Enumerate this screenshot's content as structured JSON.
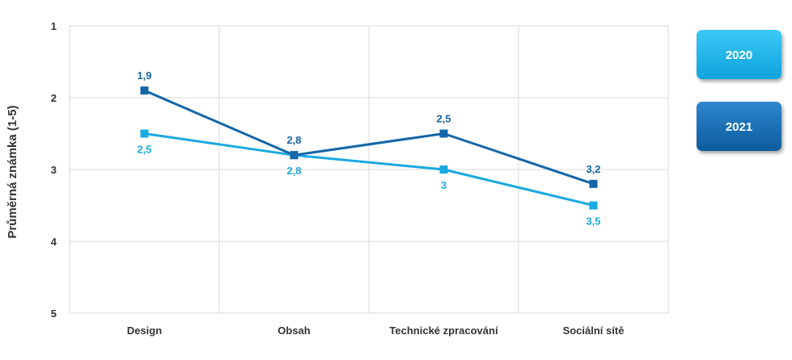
{
  "chart_data": {
    "type": "line",
    "title": "",
    "xlabel": "",
    "ylabel": "Průměrná známka (1-5)",
    "categories": [
      "Design",
      "Obsah",
      "Technické zpracování",
      "Sociální sítě"
    ],
    "yticks": [
      "1",
      "2",
      "3",
      "4",
      "5"
    ],
    "ylim": [
      1,
      5
    ],
    "y_inverted": true,
    "grid": true,
    "legend_position": "right",
    "series": [
      {
        "name": "2020",
        "values": [
          2.5,
          2.8,
          3,
          3.5
        ],
        "labels": [
          "2,5",
          "2,8",
          "3",
          "3,5"
        ],
        "label_side": "below",
        "color": "#1BA9E1"
      },
      {
        "name": "2021",
        "values": [
          1.9,
          2.8,
          2.5,
          3.2
        ],
        "labels": [
          "1,9",
          "2,8",
          "2,5",
          "3,2"
        ],
        "label_side": "above",
        "color": "#1466A8"
      }
    ]
  },
  "colors": {
    "grid": "#D9D9D9",
    "legend_2020_top": "#3CC8F5",
    "legend_2020_bottom": "#0FA3DD",
    "legend_2021_top": "#2E86CC",
    "legend_2021_bottom": "#0D5C9E"
  }
}
